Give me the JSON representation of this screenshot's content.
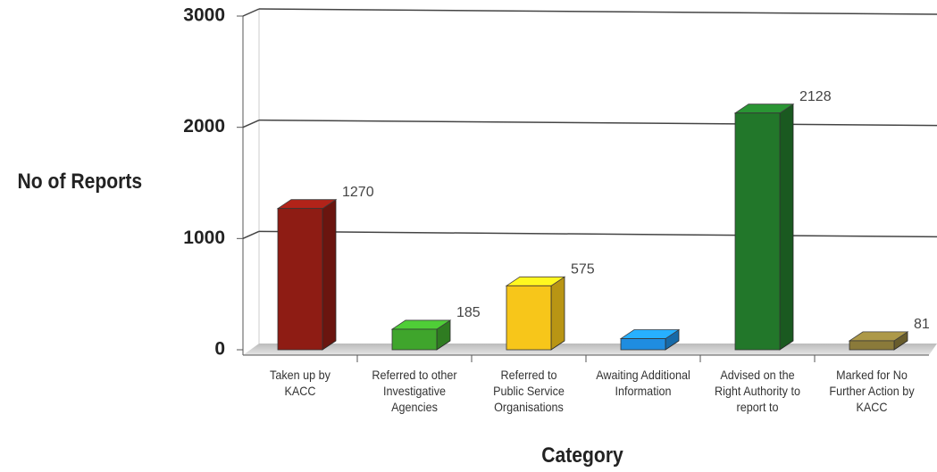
{
  "chart_data": {
    "type": "bar3d",
    "y_label": "No of Reports",
    "x_label": "Category",
    "categories": [
      "Taken up by\nKACC",
      "Referred to other\nInvestigative\nAgencies",
      "Referred to\nPublic Service\nOrganisations",
      "Awaiting Additional\nInformation",
      "Advised on the\nRight Authority to\nreport to",
      "Marked for No\nFurther Action by\nKACC"
    ],
    "values": [
      1270,
      185,
      575,
      100,
      2128,
      81
    ],
    "value_labels": [
      "1270",
      "185",
      "575",
      null,
      "2128",
      "81"
    ],
    "colors": [
      "#8e1c14",
      "#3fa52c",
      "#f7c61a",
      "#1f8de0",
      "#22772a",
      "#8a7a3a"
    ],
    "ylim": [
      0,
      3000
    ],
    "yticks": [
      0,
      1000,
      2000,
      3000
    ],
    "grid": true
  }
}
